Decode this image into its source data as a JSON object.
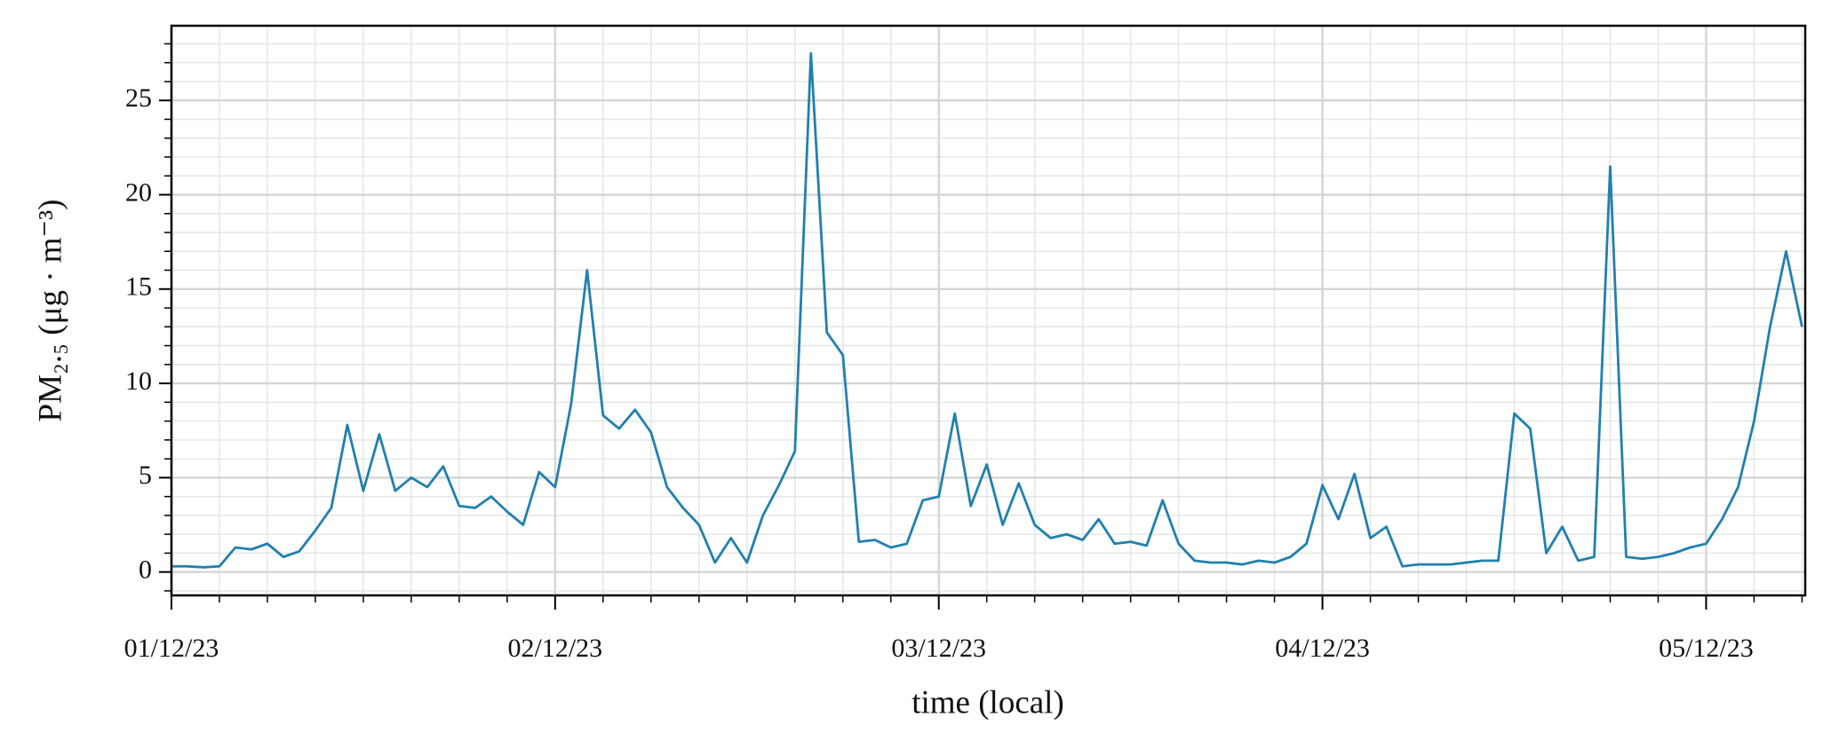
{
  "chart_data": {
    "type": "line",
    "xlabel": "time (local)",
    "ylabel": "PM₂.₅ (μg · m⁻³)",
    "x": [
      0,
      1,
      2,
      3,
      4,
      5,
      6,
      7,
      8,
      9,
      10,
      11,
      12,
      13,
      14,
      15,
      16,
      17,
      18,
      19,
      20,
      21,
      22,
      23,
      24,
      25,
      26,
      27,
      28,
      29,
      30,
      31,
      32,
      33,
      34,
      35,
      36,
      37,
      38,
      39,
      40,
      41,
      42,
      43,
      44,
      45,
      46,
      47,
      48,
      49,
      50,
      51,
      52,
      53,
      54,
      55,
      56,
      57,
      58,
      59,
      60,
      61,
      62,
      63,
      64,
      65,
      66,
      67,
      68,
      69,
      70,
      71,
      72,
      73,
      74,
      75,
      76,
      77,
      78,
      79,
      80,
      81,
      82,
      83,
      84,
      85,
      86,
      87,
      88,
      89,
      90,
      91,
      92,
      93,
      94,
      95,
      96,
      97,
      98,
      99,
      100,
      101,
      102
    ],
    "series": [
      {
        "name": "PM2.5",
        "color": "#2080b0",
        "values": [
          0.3,
          0.3,
          0.25,
          0.3,
          1.3,
          1.2,
          1.5,
          0.8,
          1.1,
          2.2,
          3.4,
          7.8,
          4.3,
          7.3,
          4.3,
          5.0,
          4.5,
          5.6,
          3.5,
          3.4,
          4.0,
          3.2,
          2.5,
          5.3,
          4.5,
          8.9,
          16.0,
          8.3,
          7.6,
          8.6,
          7.4,
          4.5,
          3.4,
          2.5,
          0.5,
          1.8,
          0.5,
          3.0,
          4.6,
          6.4,
          27.5,
          12.7,
          11.5,
          1.6,
          1.7,
          1.3,
          1.5,
          3.8,
          4.0,
          8.4,
          3.5,
          5.7,
          2.5,
          4.7,
          2.5,
          1.8,
          2.0,
          1.7,
          2.8,
          1.5,
          1.6,
          1.4,
          3.8,
          1.5,
          0.6,
          0.5,
          0.5,
          0.4,
          0.6,
          0.5,
          0.8,
          1.5,
          4.6,
          2.8,
          5.2,
          1.8,
          2.4,
          0.3,
          0.4,
          0.4,
          0.4,
          0.5,
          0.6,
          0.6,
          8.4,
          7.6,
          1.0,
          2.4,
          0.6,
          0.8,
          21.5,
          0.8,
          0.7,
          0.8,
          1.0,
          1.3,
          1.5,
          2.8,
          4.5,
          8.0,
          13.0,
          17.0,
          13.0
        ]
      }
    ],
    "xlim": [
      0,
      102.2
    ],
    "ylim": [
      -1.24,
      28.96
    ],
    "xticks": [
      {
        "value": 0,
        "label": "01/12/23"
      },
      {
        "value": 24,
        "label": "02/12/23"
      },
      {
        "value": 48,
        "label": "03/12/23"
      },
      {
        "value": 72,
        "label": "04/12/23"
      },
      {
        "value": 96,
        "label": "05/12/23"
      }
    ],
    "xminorticks": [
      3,
      6,
      9,
      12,
      15,
      18,
      21,
      27,
      30,
      33,
      36,
      39,
      42,
      45,
      51,
      54,
      57,
      60,
      63,
      66,
      69,
      75,
      78,
      81,
      84,
      87,
      90,
      93,
      99,
      102
    ],
    "yticks": [
      0,
      5,
      10,
      15,
      20,
      25
    ],
    "yminorticks": [
      -1,
      1,
      2,
      3,
      4,
      6,
      7,
      8,
      9,
      11,
      12,
      13,
      14,
      16,
      17,
      18,
      19,
      21,
      22,
      23,
      24,
      26,
      27,
      28
    ],
    "grid": true
  }
}
